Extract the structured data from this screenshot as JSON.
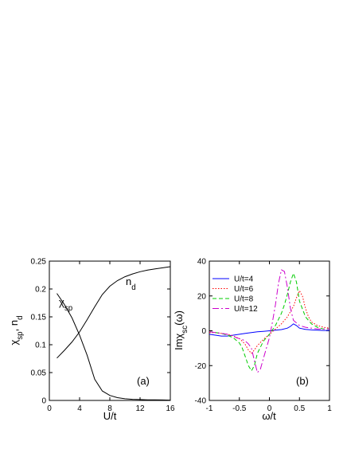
{
  "chart_data": [
    {
      "type": "line",
      "panel_label": "(a)",
      "xlabel": "U/t",
      "ylabel": "χsp, nd",
      "xlim": [
        0,
        16
      ],
      "ylim": [
        0,
        0.25
      ],
      "xticks": [
        0,
        4,
        8,
        12,
        16
      ],
      "yticks": [
        0,
        0.05,
        0.1,
        0.15,
        0.2,
        0.25
      ],
      "grid": false,
      "series": [
        {
          "name": "χsp",
          "x": [
            1,
            2,
            3,
            4,
            5,
            6,
            7,
            8,
            9,
            10,
            11,
            12,
            13,
            14,
            15,
            16
          ],
          "y": [
            0.192,
            0.172,
            0.148,
            0.117,
            0.081,
            0.038,
            0.017,
            0.009,
            0.005,
            0.003,
            0.002,
            0.0015,
            0.0012,
            0.001,
            0.0008,
            0.0006
          ]
        },
        {
          "name": "nd",
          "x": [
            1,
            2,
            3,
            4,
            5,
            6,
            7,
            8,
            9,
            10,
            11,
            12,
            13,
            14,
            15,
            16
          ],
          "y": [
            0.076,
            0.09,
            0.105,
            0.123,
            0.145,
            0.168,
            0.19,
            0.205,
            0.215,
            0.222,
            0.227,
            0.231,
            0.234,
            0.236,
            0.238,
            0.24
          ]
        }
      ]
    },
    {
      "type": "line",
      "panel_label": "(b)",
      "xlabel": "ω/t",
      "ylabel": "Imχsc(ω)",
      "xlim": [
        -1,
        1
      ],
      "ylim": [
        -40,
        40
      ],
      "xticks": [
        -1,
        -0.5,
        0,
        0.5,
        1
      ],
      "yticks": [
        -40,
        -20,
        0,
        20,
        40
      ],
      "legend": "top-left",
      "grid": false,
      "series": [
        {
          "name": "U/t=4",
          "color": "#0000ff",
          "dash": "solid",
          "x": [
            -1,
            -0.9,
            -0.8,
            -0.7,
            -0.6,
            -0.5,
            -0.4,
            -0.3,
            -0.2,
            -0.1,
            0,
            0.1,
            0.2,
            0.3,
            0.35,
            0.4,
            0.45,
            0.5,
            0.6,
            0.7,
            0.8,
            0.9,
            1
          ],
          "y": [
            -2,
            -2.5,
            -3,
            -3,
            -2.5,
            -2,
            -1.5,
            -1,
            -0.6,
            -0.3,
            0,
            0.3,
            0.7,
            1.5,
            2.5,
            4,
            3,
            1.5,
            0.8,
            0.5,
            0.3,
            0.2,
            0.2
          ]
        },
        {
          "name": "U/t=6",
          "color": "#ff0000",
          "dash": "dotted",
          "x": [
            -1,
            -0.9,
            -0.8,
            -0.7,
            -0.6,
            -0.5,
            -0.45,
            -0.4,
            -0.35,
            -0.3,
            -0.25,
            -0.2,
            -0.1,
            0,
            0.1,
            0.2,
            0.3,
            0.4,
            0.45,
            0.5,
            0.55,
            0.6,
            0.65,
            0.7,
            0.8,
            0.9,
            1
          ],
          "y": [
            -1,
            -1,
            -1.5,
            -2,
            -3,
            -4.5,
            -6,
            -8,
            -11,
            -13,
            -11,
            -8.5,
            -5,
            -2,
            1,
            4,
            8,
            14,
            19,
            23,
            20,
            13,
            8,
            5,
            3,
            2,
            1.5
          ]
        },
        {
          "name": "U/t=8",
          "color": "#00cc00",
          "dash": "dashed",
          "x": [
            -1,
            -0.9,
            -0.8,
            -0.7,
            -0.6,
            -0.5,
            -0.45,
            -0.4,
            -0.35,
            -0.3,
            -0.25,
            -0.2,
            -0.1,
            0,
            0.1,
            0.2,
            0.25,
            0.3,
            0.35,
            0.4,
            0.45,
            0.5,
            0.6,
            0.7,
            0.8,
            0.9,
            1
          ],
          "y": [
            -0.5,
            -1,
            -1.5,
            -2.5,
            -4,
            -7,
            -10,
            -15,
            -20,
            -23,
            -20,
            -13,
            -6,
            -2,
            3,
            10,
            15,
            21,
            28,
            33,
            28,
            17,
            8,
            4,
            2,
            1,
            1
          ]
        },
        {
          "name": "U/t=12",
          "color": "#cc00cc",
          "dash": "dashdot",
          "x": [
            -1,
            -0.9,
            -0.8,
            -0.7,
            -0.6,
            -0.55,
            -0.5,
            -0.45,
            -0.4,
            -0.35,
            -0.3,
            -0.25,
            -0.2,
            -0.15,
            -0.1,
            -0.05,
            0,
            0.05,
            0.1,
            0.15,
            0.2,
            0.25,
            0.3,
            0.35,
            0.4,
            0.5,
            0.6,
            0.7,
            0.8,
            0.9,
            1
          ],
          "y": [
            -0.5,
            -1,
            -1.5,
            -2,
            -3,
            -4,
            -4.5,
            -5,
            -6,
            -7.5,
            -10,
            -17,
            -24,
            -22,
            -16,
            -10,
            -4,
            5,
            15,
            27,
            35,
            34,
            25,
            13,
            6,
            3,
            2,
            1.5,
            1,
            1,
            1
          ]
        }
      ]
    }
  ]
}
